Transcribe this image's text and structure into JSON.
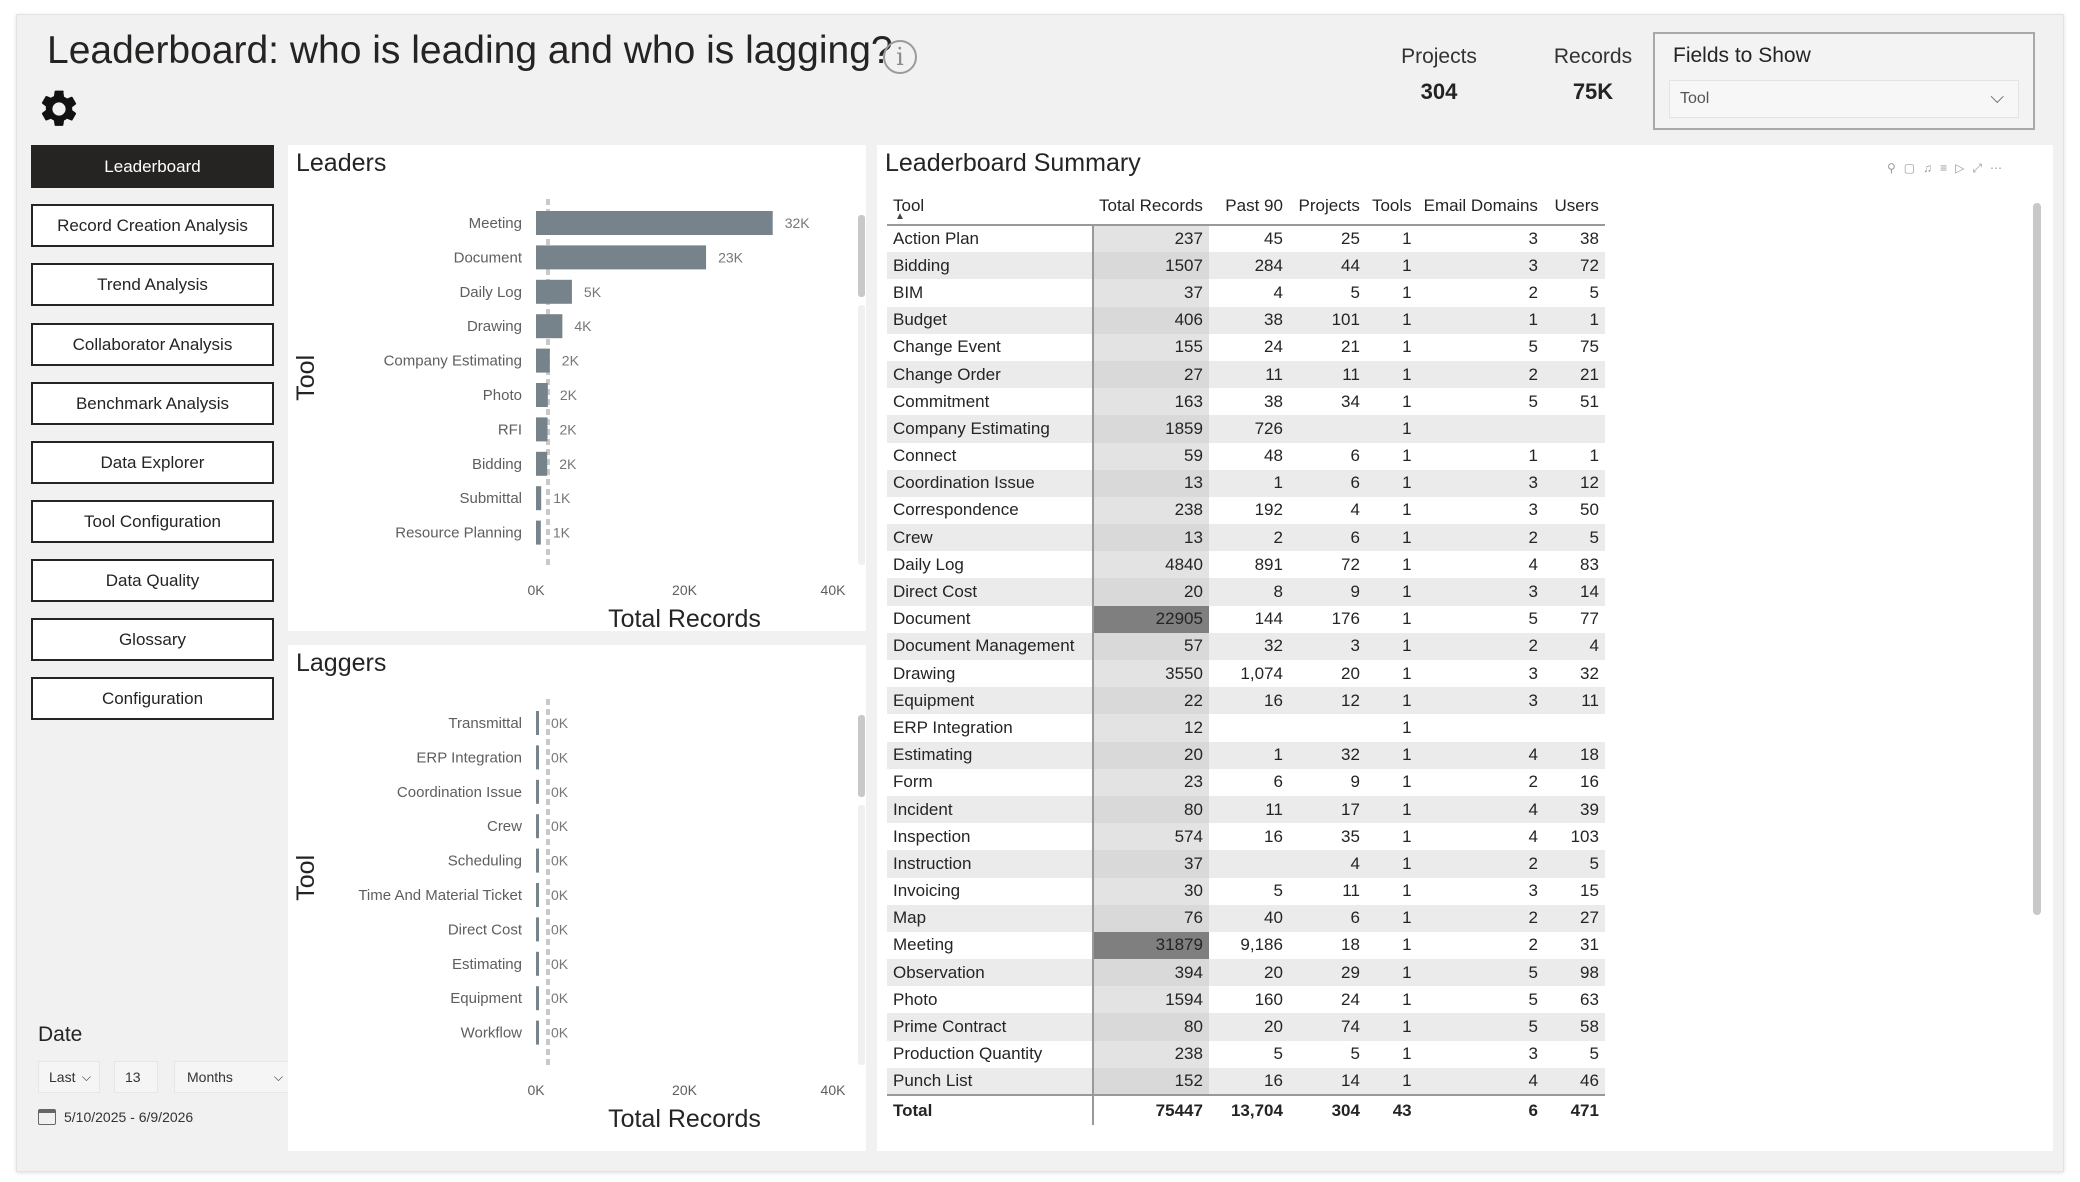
{
  "header": {
    "title": "Leaderboard: who is leading and who is lagging?",
    "kpis": [
      {
        "label": "Projects",
        "value": "304"
      },
      {
        "label": "Records",
        "value": "75K"
      }
    ],
    "fields_to_show": {
      "title": "Fields to Show",
      "selected": "Tool"
    }
  },
  "nav": {
    "items": [
      {
        "label": "Leaderboard",
        "active": true
      },
      {
        "label": "Record Creation Analysis"
      },
      {
        "label": "Trend Analysis"
      },
      {
        "label": "Collaborator Analysis"
      },
      {
        "label": "Benchmark Analysis"
      },
      {
        "label": "Data Explorer"
      },
      {
        "label": "Tool Configuration"
      },
      {
        "label": "Data Quality"
      },
      {
        "label": "Glossary"
      },
      {
        "label": "Configuration"
      }
    ]
  },
  "date_filter": {
    "label": "Date",
    "mode": "Last",
    "count": "13",
    "unit": "Months",
    "range": "5/10/2025 - 6/9/2026"
  },
  "chart_data": [
    {
      "type": "bar",
      "orientation": "horizontal",
      "title": "Leaders",
      "xlabel": "Total Records",
      "ylabel": "Tool",
      "categories": [
        "Meeting",
        "Document",
        "Daily Log",
        "Drawing",
        "Company Estimating",
        "Photo",
        "RFI",
        "Bidding",
        "Submittal",
        "Resource Planning"
      ],
      "values": [
        31879,
        22905,
        4840,
        3550,
        1859,
        1594,
        1550,
        1507,
        700,
        650
      ],
      "data_labels": [
        "32K",
        "23K",
        "5K",
        "4K",
        "2K",
        "2K",
        "2K",
        "2K",
        "1K",
        "1K"
      ],
      "xlim": [
        0,
        40000
      ],
      "x_ticks": [
        "0K",
        "20K",
        "40K"
      ],
      "bar_color": "#77838a"
    },
    {
      "type": "bar",
      "orientation": "horizontal",
      "title": "Laggers",
      "xlabel": "Total Records",
      "ylabel": "Tool",
      "categories": [
        "Transmittal",
        "ERP Integration",
        "Coordination Issue",
        "Crew",
        "Scheduling",
        "Time And Material Ticket",
        "Direct Cost",
        "Estimating",
        "Equipment",
        "Workflow"
      ],
      "values": [
        5,
        12,
        13,
        13,
        15,
        18,
        20,
        20,
        22,
        23
      ],
      "data_labels": [
        "0K",
        "0K",
        "0K",
        "0K",
        "0K",
        "0K",
        "0K",
        "0K",
        "0K",
        "0K"
      ],
      "xlim": [
        0,
        40000
      ],
      "x_ticks": [
        "0K",
        "20K",
        "40K"
      ],
      "bar_color": "#77838a"
    }
  ],
  "summary": {
    "title": "Leaderboard Summary",
    "columns": [
      "Tool",
      "Total Records",
      "Past 90",
      "Projects",
      "Tools",
      "Email Domains",
      "Users"
    ],
    "rows": [
      [
        "Action Plan",
        "237",
        "45",
        "25",
        "1",
        "3",
        "38"
      ],
      [
        "Bidding",
        "1507",
        "284",
        "44",
        "1",
        "3",
        "72"
      ],
      [
        "BIM",
        "37",
        "4",
        "5",
        "1",
        "2",
        "5"
      ],
      [
        "Budget",
        "406",
        "38",
        "101",
        "1",
        "1",
        "1"
      ],
      [
        "Change Event",
        "155",
        "24",
        "21",
        "1",
        "5",
        "75"
      ],
      [
        "Change Order",
        "27",
        "11",
        "11",
        "1",
        "2",
        "21"
      ],
      [
        "Commitment",
        "163",
        "38",
        "34",
        "1",
        "5",
        "51"
      ],
      [
        "Company Estimating",
        "1859",
        "726",
        "",
        "1",
        "",
        ""
      ],
      [
        "Connect",
        "59",
        "48",
        "6",
        "1",
        "1",
        "1"
      ],
      [
        "Coordination Issue",
        "13",
        "1",
        "6",
        "1",
        "3",
        "12"
      ],
      [
        "Correspondence",
        "238",
        "192",
        "4",
        "1",
        "3",
        "50"
      ],
      [
        "Crew",
        "13",
        "2",
        "6",
        "1",
        "2",
        "5"
      ],
      [
        "Daily Log",
        "4840",
        "891",
        "72",
        "1",
        "4",
        "83"
      ],
      [
        "Direct Cost",
        "20",
        "8",
        "9",
        "1",
        "3",
        "14"
      ],
      [
        "Document",
        "22905",
        "144",
        "176",
        "1",
        "5",
        "77"
      ],
      [
        "Document Management",
        "57",
        "32",
        "3",
        "1",
        "2",
        "4"
      ],
      [
        "Drawing",
        "3550",
        "1,074",
        "20",
        "1",
        "3",
        "32"
      ],
      [
        "Equipment",
        "22",
        "16",
        "12",
        "1",
        "3",
        "11"
      ],
      [
        "ERP Integration",
        "12",
        "",
        "",
        "1",
        "",
        ""
      ],
      [
        "Estimating",
        "20",
        "1",
        "32",
        "1",
        "4",
        "18"
      ],
      [
        "Form",
        "23",
        "6",
        "9",
        "1",
        "2",
        "16"
      ],
      [
        "Incident",
        "80",
        "11",
        "17",
        "1",
        "4",
        "39"
      ],
      [
        "Inspection",
        "574",
        "16",
        "35",
        "1",
        "4",
        "103"
      ],
      [
        "Instruction",
        "37",
        "",
        "4",
        "1",
        "2",
        "5"
      ],
      [
        "Invoicing",
        "30",
        "5",
        "11",
        "1",
        "3",
        "15"
      ],
      [
        "Map",
        "76",
        "40",
        "6",
        "1",
        "2",
        "27"
      ],
      [
        "Meeting",
        "31879",
        "9,186",
        "18",
        "1",
        "2",
        "31"
      ],
      [
        "Observation",
        "394",
        "20",
        "29",
        "1",
        "5",
        "98"
      ],
      [
        "Photo",
        "1594",
        "160",
        "24",
        "1",
        "5",
        "63"
      ],
      [
        "Prime Contract",
        "80",
        "20",
        "74",
        "1",
        "5",
        "58"
      ],
      [
        "Production Quantity",
        "238",
        "5",
        "5",
        "1",
        "3",
        "5"
      ],
      [
        "Punch List",
        "152",
        "16",
        "14",
        "1",
        "4",
        "46"
      ]
    ],
    "total": [
      "Total",
      "75447",
      "13,704",
      "304",
      "43",
      "6",
      "471"
    ],
    "highlight_color": "#7f7f7f"
  }
}
